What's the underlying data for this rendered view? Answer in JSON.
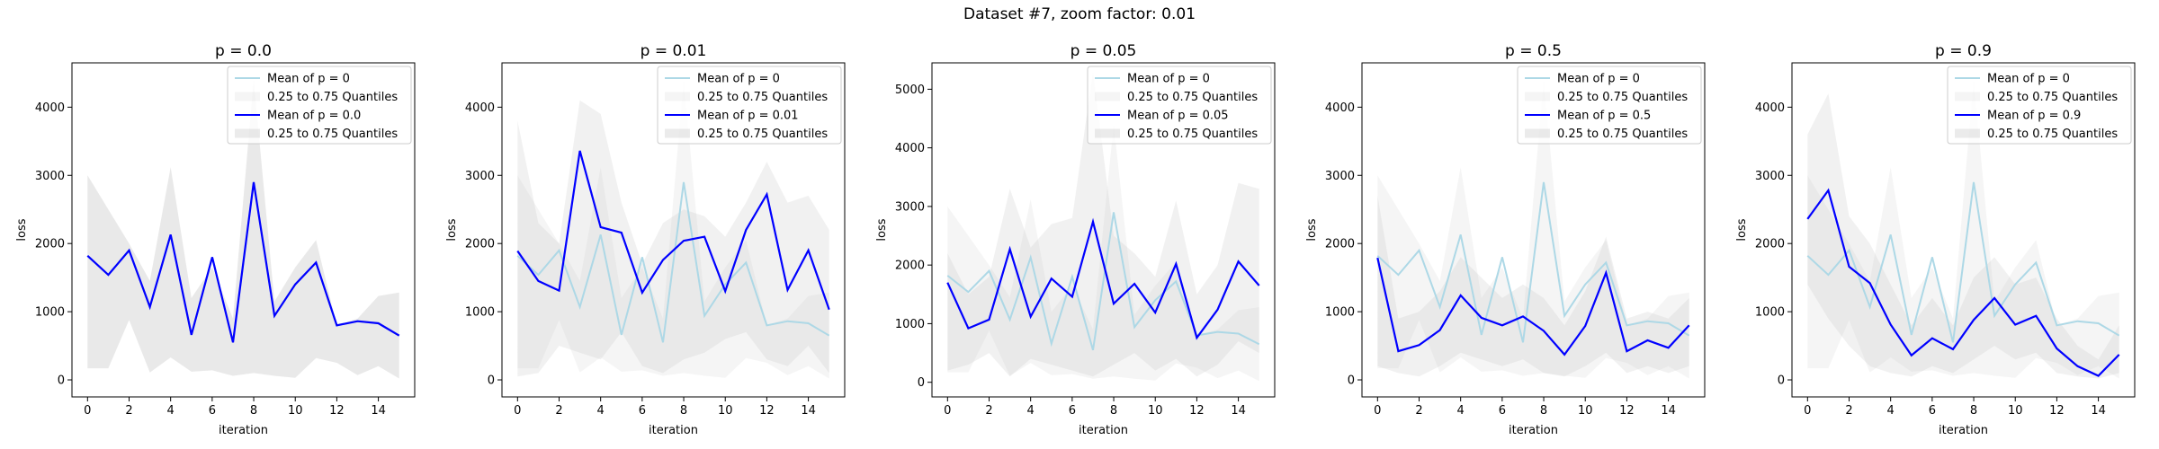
{
  "suptitle": "Dataset #7, zoom factor: 0.01",
  "colors": {
    "baseline_line": "#add8e6",
    "highlight_line": "#0000ff",
    "band": "#bdbdbd",
    "axes": "#000000"
  },
  "chart_data": [
    {
      "type": "line",
      "title": "p = 0.0",
      "xlabel": "iteration",
      "ylabel": "loss",
      "xlim": [
        -0.75,
        15.75
      ],
      "ylim": [
        -250,
        4650
      ],
      "xticks": [
        0,
        2,
        4,
        6,
        8,
        10,
        12,
        14
      ],
      "yticks": [
        0,
        1000,
        2000,
        3000,
        4000
      ],
      "legend_position": "top-right",
      "legend": [
        "Mean of p = 0",
        "0.25 to 0.75 Quantiles",
        "Mean of p = 0.0",
        "0.25 to 0.75 Quantiles"
      ],
      "x": [
        0,
        1,
        2,
        3,
        4,
        5,
        6,
        7,
        8,
        9,
        10,
        11,
        12,
        13,
        14,
        15
      ],
      "series": [
        {
          "name": "Mean of p = 0",
          "color": "#add8e6",
          "values": [
            1820,
            1540,
            1900,
            1070,
            2130,
            660,
            1800,
            550,
            2900,
            940,
            1400,
            1720,
            800,
            860,
            830,
            650
          ],
          "band_low": [
            170,
            170,
            880,
            110,
            330,
            120,
            140,
            60,
            100,
            60,
            30,
            320,
            250,
            70,
            200,
            20
          ],
          "band_high": [
            3000,
            2500,
            2000,
            1450,
            3120,
            1200,
            1650,
            900,
            4400,
            1150,
            1650,
            2050,
            800,
            900,
            1230,
            1280
          ]
        },
        {
          "name": "Mean of p = 0.0",
          "color": "#0000ff",
          "values": [
            1820,
            1540,
            1900,
            1070,
            2130,
            660,
            1800,
            550,
            2900,
            940,
            1400,
            1720,
            800,
            860,
            830,
            650
          ],
          "band_low": [
            170,
            170,
            880,
            110,
            330,
            120,
            140,
            60,
            100,
            60,
            30,
            320,
            250,
            70,
            200,
            20
          ],
          "band_high": [
            3000,
            2500,
            2000,
            1450,
            3120,
            1200,
            1650,
            900,
            4400,
            1150,
            1650,
            2050,
            800,
            900,
            1230,
            1280
          ]
        }
      ]
    },
    {
      "type": "line",
      "title": "p = 0.01",
      "xlabel": "iteration",
      "ylabel": "loss",
      "xlim": [
        -0.75,
        15.75
      ],
      "ylim": [
        -250,
        4650
      ],
      "xticks": [
        0,
        2,
        4,
        6,
        8,
        10,
        12,
        14
      ],
      "yticks": [
        0,
        1000,
        2000,
        3000,
        4000
      ],
      "legend_position": "top-right",
      "legend": [
        "Mean of p = 0",
        "0.25 to 0.75 Quantiles",
        "Mean of p = 0.01",
        "0.25 to 0.75 Quantiles"
      ],
      "x": [
        0,
        1,
        2,
        3,
        4,
        5,
        6,
        7,
        8,
        9,
        10,
        11,
        12,
        13,
        14,
        15
      ],
      "series": [
        {
          "name": "Mean of p = 0",
          "color": "#add8e6",
          "values": [
            1820,
            1540,
            1900,
            1070,
            2130,
            660,
            1800,
            550,
            2900,
            940,
            1400,
            1720,
            800,
            860,
            830,
            650
          ],
          "band_low": [
            170,
            170,
            880,
            110,
            330,
            120,
            140,
            60,
            100,
            60,
            30,
            320,
            250,
            70,
            200,
            20
          ],
          "band_high": [
            3000,
            2500,
            2000,
            1450,
            3120,
            1200,
            1650,
            900,
            4400,
            1150,
            1650,
            2050,
            800,
            900,
            1230,
            1280
          ]
        },
        {
          "name": "Mean of p = 0.01",
          "color": "#0000ff",
          "values": [
            1890,
            1450,
            1310,
            3360,
            2240,
            2160,
            1280,
            1760,
            2040,
            2100,
            1300,
            2200,
            2720,
            1320,
            1900,
            1030
          ],
          "band_low": [
            50,
            100,
            500,
            400,
            300,
            700,
            200,
            100,
            300,
            400,
            600,
            700,
            300,
            200,
            500,
            100
          ],
          "band_high": [
            3800,
            2300,
            2000,
            4100,
            3900,
            2600,
            1700,
            2300,
            2500,
            2400,
            2100,
            2600,
            3200,
            2600,
            2700,
            2200
          ]
        }
      ]
    },
    {
      "type": "line",
      "title": "p = 0.05",
      "xlabel": "iteration",
      "ylabel": "loss",
      "xlim": [
        -0.75,
        15.75
      ],
      "ylim": [
        -250,
        5450
      ],
      "xticks": [
        0,
        2,
        4,
        6,
        8,
        10,
        12,
        14
      ],
      "yticks": [
        0,
        1000,
        2000,
        3000,
        4000,
        5000
      ],
      "legend_position": "top-right",
      "legend": [
        "Mean of p = 0",
        "0.25 to 0.75 Quantiles",
        "Mean of p = 0.05",
        "0.25 to 0.75 Quantiles"
      ],
      "x": [
        0,
        1,
        2,
        3,
        4,
        5,
        6,
        7,
        8,
        9,
        10,
        11,
        12,
        13,
        14,
        15
      ],
      "series": [
        {
          "name": "Mean of p = 0",
          "color": "#add8e6",
          "values": [
            1820,
            1540,
            1900,
            1070,
            2130,
            660,
            1800,
            550,
            2900,
            940,
            1400,
            1720,
            800,
            860,
            830,
            650
          ],
          "band_low": [
            170,
            170,
            880,
            110,
            330,
            120,
            140,
            60,
            100,
            60,
            30,
            320,
            250,
            70,
            200,
            20
          ],
          "band_high": [
            3000,
            2500,
            2000,
            1450,
            3120,
            1200,
            1650,
            900,
            4400,
            1150,
            1650,
            2050,
            800,
            900,
            1230,
            1280
          ]
        },
        {
          "name": "Mean of p = 0.05",
          "color": "#0000ff",
          "values": [
            1700,
            920,
            1070,
            2270,
            1120,
            1770,
            1460,
            2740,
            1340,
            1680,
            1190,
            2020,
            760,
            1240,
            2060,
            1650
          ],
          "band_low": [
            200,
            300,
            500,
            100,
            400,
            300,
            200,
            100,
            300,
            500,
            200,
            400,
            100,
            300,
            700,
            500
          ],
          "band_high": [
            2200,
            1500,
            1800,
            3300,
            2300,
            2700,
            2800,
            5300,
            2500,
            2200,
            1800,
            3100,
            1500,
            2000,
            3400,
            3300
          ]
        }
      ]
    },
    {
      "type": "line",
      "title": "p = 0.5",
      "xlabel": "iteration",
      "ylabel": "loss",
      "xlim": [
        -0.75,
        15.75
      ],
      "ylim": [
        -250,
        4650
      ],
      "xticks": [
        0,
        2,
        4,
        6,
        8,
        10,
        12,
        14
      ],
      "yticks": [
        0,
        1000,
        2000,
        3000,
        4000
      ],
      "legend_position": "top-right",
      "legend": [
        "Mean of p = 0",
        "0.25 to 0.75 Quantiles",
        "Mean of p = 0.5",
        "0.25 to 0.75 Quantiles"
      ],
      "x": [
        0,
        1,
        2,
        3,
        4,
        5,
        6,
        7,
        8,
        9,
        10,
        11,
        12,
        13,
        14,
        15
      ],
      "series": [
        {
          "name": "Mean of p = 0",
          "color": "#add8e6",
          "values": [
            1820,
            1540,
            1900,
            1070,
            2130,
            660,
            1800,
            550,
            2900,
            940,
            1400,
            1720,
            800,
            860,
            830,
            650
          ],
          "band_low": [
            170,
            170,
            880,
            110,
            330,
            120,
            140,
            60,
            100,
            60,
            30,
            320,
            250,
            70,
            200,
            20
          ],
          "band_high": [
            3000,
            2500,
            2000,
            1450,
            3120,
            1200,
            1650,
            900,
            4400,
            1150,
            1650,
            2050,
            800,
            900,
            1230,
            1280
          ]
        },
        {
          "name": "Mean of p = 0.5",
          "color": "#0000ff",
          "values": [
            1790,
            420,
            510,
            730,
            1240,
            910,
            800,
            930,
            720,
            370,
            790,
            1570,
            420,
            580,
            470,
            800
          ],
          "band_low": [
            200,
            100,
            50,
            200,
            400,
            300,
            200,
            300,
            100,
            50,
            200,
            400,
            100,
            200,
            100,
            200
          ],
          "band_high": [
            2700,
            900,
            1000,
            1300,
            1800,
            1500,
            1200,
            1400,
            1200,
            800,
            1300,
            2100,
            900,
            1000,
            900,
            1200
          ]
        }
      ]
    },
    {
      "type": "line",
      "title": "p = 0.9",
      "xlabel": "iteration",
      "ylabel": "loss",
      "xlim": [
        -0.75,
        15.75
      ],
      "ylim": [
        -250,
        4650
      ],
      "xticks": [
        0,
        2,
        4,
        6,
        8,
        10,
        12,
        14
      ],
      "yticks": [
        0,
        1000,
        2000,
        3000,
        4000
      ],
      "legend_position": "top-right",
      "legend": [
        "Mean of p = 0",
        "0.25 to 0.75 Quantiles",
        "Mean of p = 0.9",
        "0.25 to 0.75 Quantiles"
      ],
      "x": [
        0,
        1,
        2,
        3,
        4,
        5,
        6,
        7,
        8,
        9,
        10,
        11,
        12,
        13,
        14,
        15
      ],
      "series": [
        {
          "name": "Mean of p = 0",
          "color": "#add8e6",
          "values": [
            1820,
            1540,
            1900,
            1070,
            2130,
            660,
            1800,
            550,
            2900,
            940,
            1400,
            1720,
            800,
            860,
            830,
            650
          ],
          "band_low": [
            170,
            170,
            880,
            110,
            330,
            120,
            140,
            60,
            100,
            60,
            30,
            320,
            250,
            70,
            200,
            20
          ],
          "band_high": [
            3000,
            2500,
            2000,
            1450,
            3120,
            1200,
            1650,
            900,
            4400,
            1150,
            1650,
            2050,
            800,
            900,
            1230,
            1280
          ]
        },
        {
          "name": "Mean of p = 0.9",
          "color": "#0000ff",
          "values": [
            2360,
            2780,
            1660,
            1420,
            810,
            360,
            610,
            450,
            880,
            1200,
            810,
            940,
            460,
            200,
            60,
            370
          ],
          "band_low": [
            1400,
            900,
            500,
            200,
            100,
            50,
            200,
            100,
            300,
            500,
            300,
            400,
            100,
            50,
            20,
            100
          ],
          "band_high": [
            3600,
            4200,
            2400,
            2000,
            1400,
            800,
            1200,
            800,
            1500,
            1800,
            1400,
            1500,
            900,
            500,
            300,
            800
          ]
        }
      ]
    }
  ]
}
